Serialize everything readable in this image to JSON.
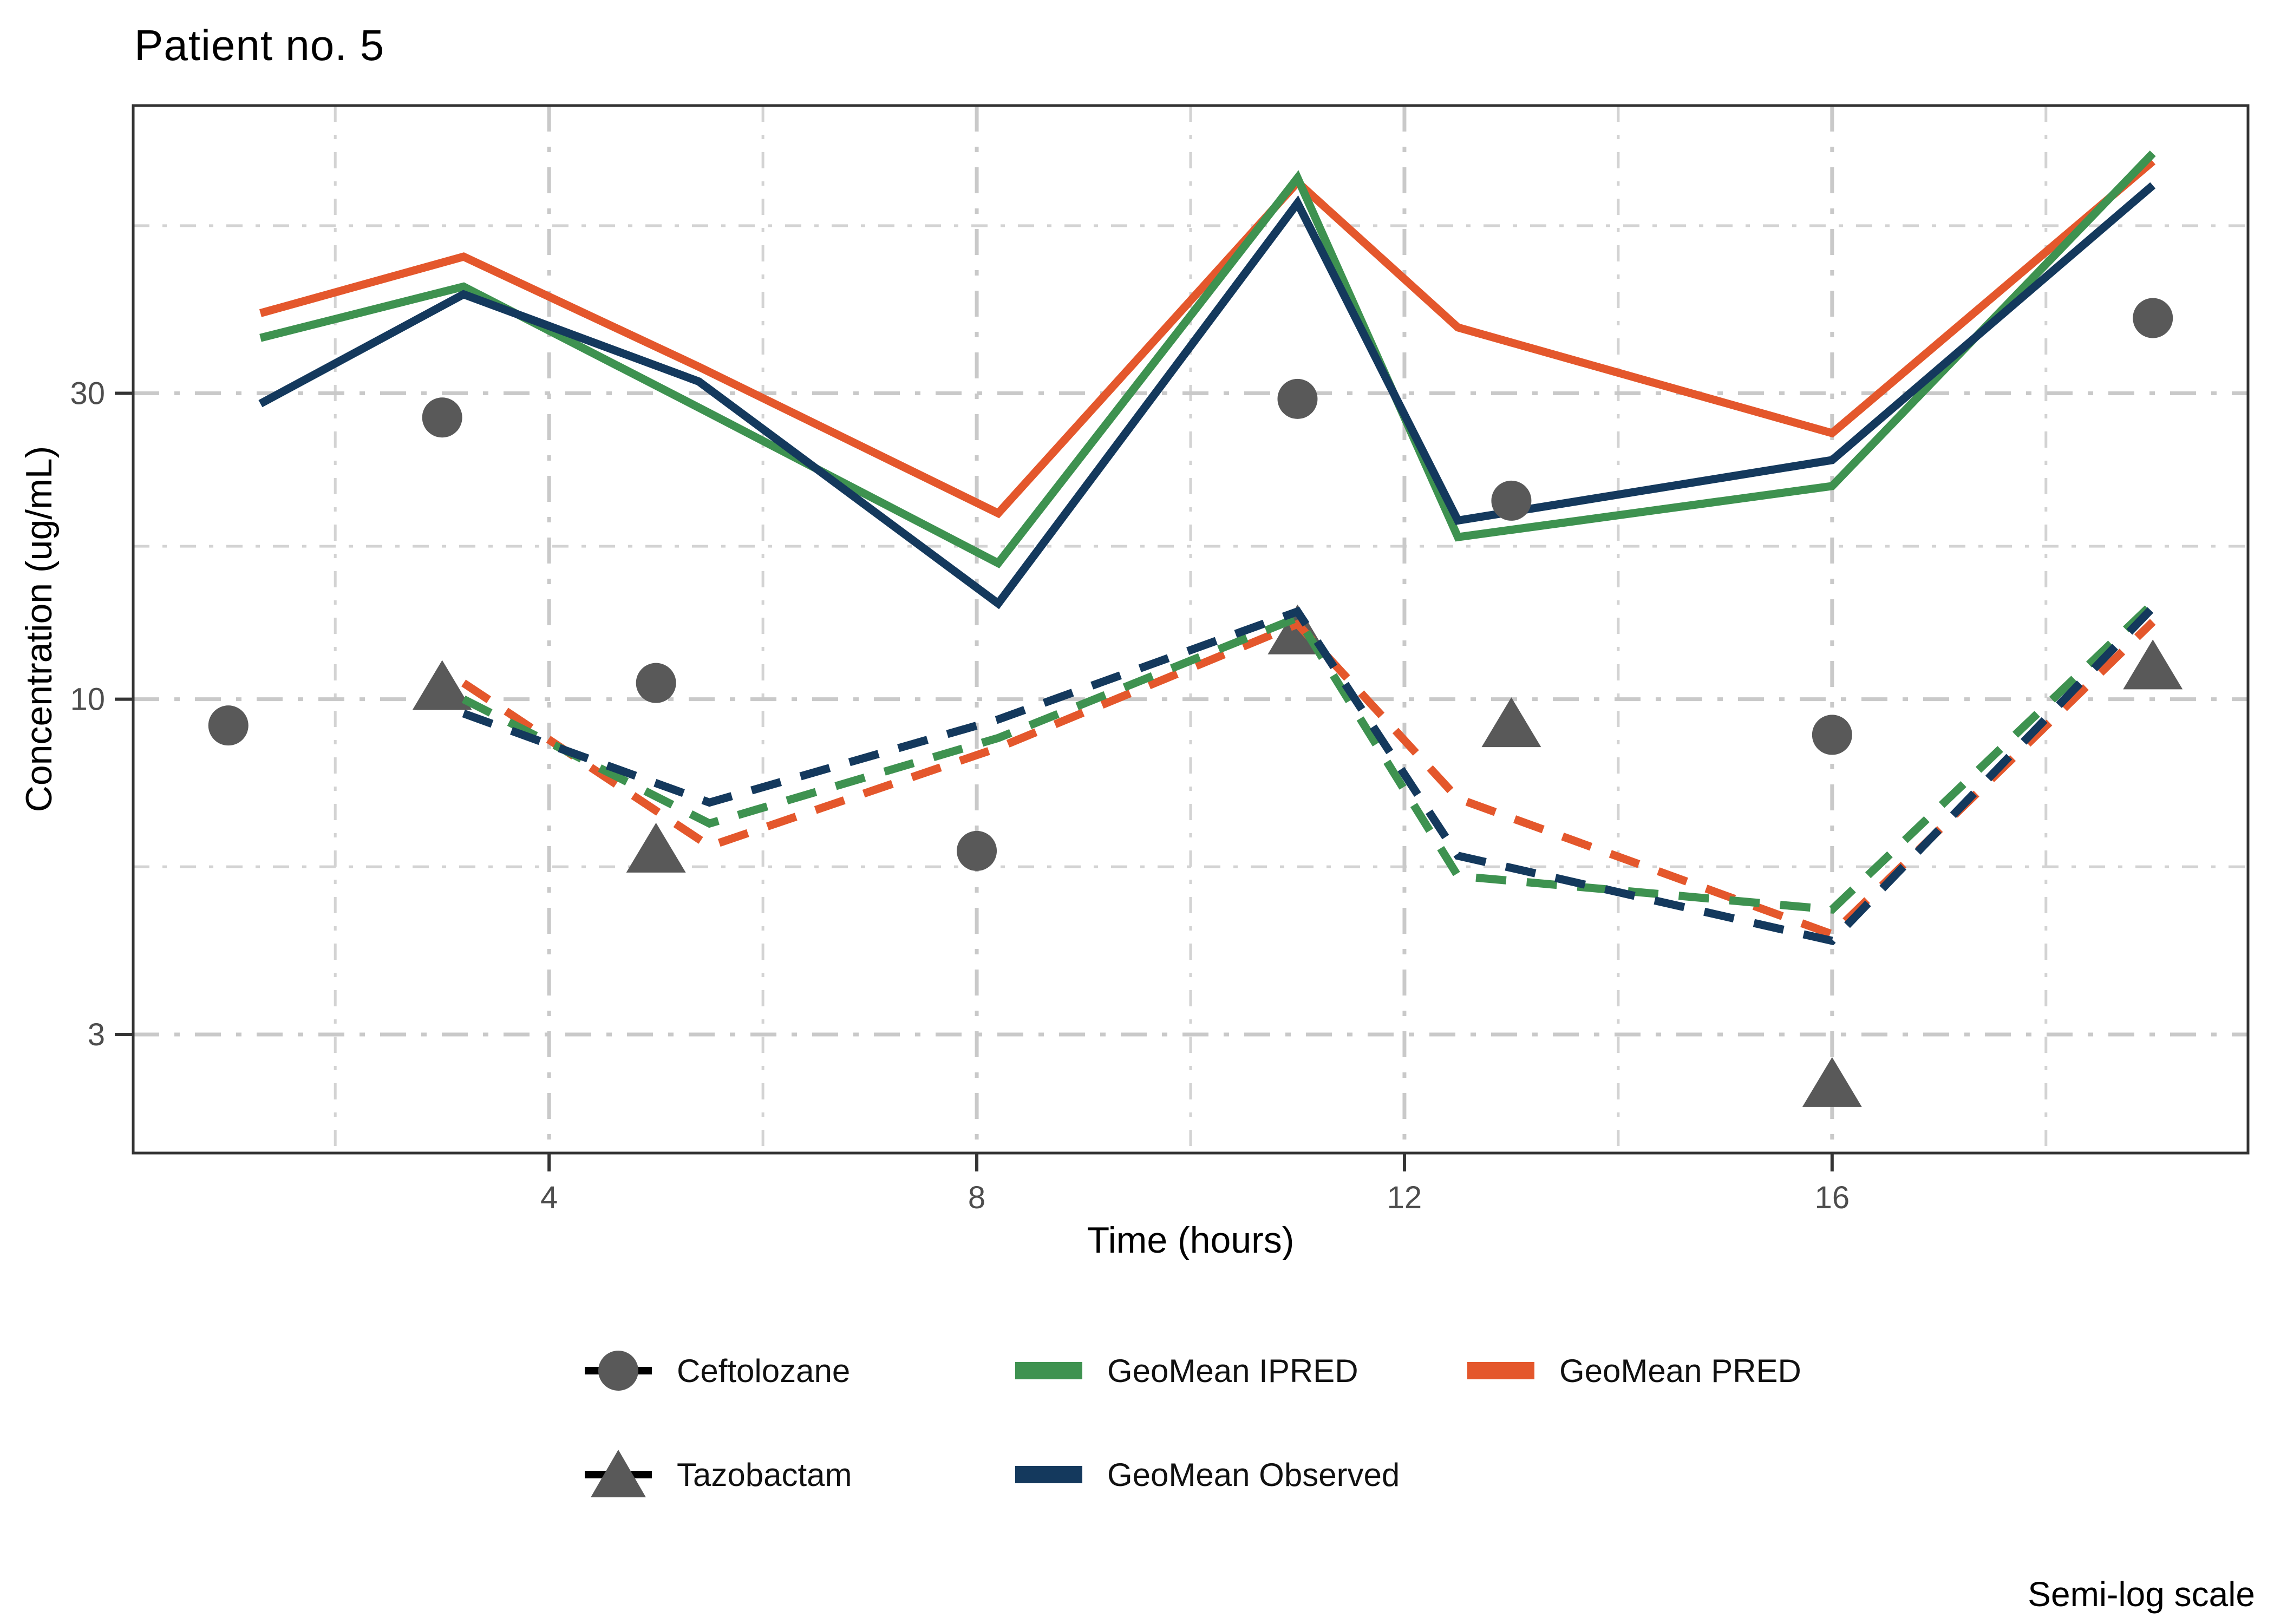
{
  "title": "Patient no. 5",
  "caption": "Semi-log scale",
  "legend": {
    "items": {
      "ceftolozane": "Ceftolozane",
      "tazobactam": "Tazobactam",
      "ipred": "GeoMean IPRED",
      "pred": "GeoMean PRED",
      "observed": "GeoMean Observed"
    }
  },
  "colors": {
    "pred": "#E4572C",
    "ipred": "#3E9250",
    "observed": "#14395D",
    "point": "#595959",
    "grid_major": "#C9C9C9",
    "grid_minor": "#D3D3D3",
    "border": "#333333",
    "tick_label": "#4D4D4D",
    "title_text": "#000000"
  },
  "chart_data": {
    "type": "line",
    "title": "Patient no. 5",
    "xlabel": "Time (hours)",
    "ylabel": "Concentration (ug/mL)",
    "x_scale": "linear",
    "y_scale": "log10",
    "xlim": [
      0.11,
      19.89
    ],
    "ylim": [
      1.96,
      84.3
    ],
    "x_ticks": [
      4,
      8,
      12,
      16
    ],
    "x_minor_gridlines": [
      2,
      6,
      10,
      14,
      18
    ],
    "y_ticks": [
      30,
      10,
      3
    ],
    "y_minor_gridlines": [
      5.48,
      17.32,
      54.77
    ],
    "grid": true,
    "legend_position": "bottom",
    "series": [
      {
        "name": "GeoMean PRED",
        "drug": "Ceftolozane",
        "color_key": "pred",
        "line_style": "solid",
        "x": [
          1.3,
          3.2,
          5.4,
          8.2,
          11,
          12.5,
          16,
          19
        ],
        "y": [
          40,
          49,
          33,
          19.5,
          64,
          38,
          26,
          69
        ]
      },
      {
        "name": "GeoMean IPRED",
        "drug": "Ceftolozane",
        "color_key": "ipred",
        "line_style": "solid",
        "x": [
          1.3,
          3.2,
          5.4,
          8.2,
          11,
          12.5,
          16,
          19
        ],
        "y": [
          36.6,
          44,
          28.5,
          16.3,
          65,
          17.9,
          21.5,
          71
        ]
      },
      {
        "name": "GeoMean Observed",
        "drug": "Ceftolozane",
        "color_key": "observed",
        "line_style": "solid",
        "x": [
          1.3,
          3.2,
          5.4,
          8.2,
          11,
          12.5,
          16,
          19
        ],
        "y": [
          28.9,
          42.8,
          31.3,
          14.1,
          59.4,
          19,
          23.6,
          63.3
        ]
      },
      {
        "name": "GeoMean PRED",
        "drug": "Tazobactam",
        "color_key": "pred",
        "line_style": "dashed",
        "x": [
          3.2,
          5.5,
          8.2,
          11,
          12.5,
          16,
          19
        ],
        "y": [
          10.6,
          5.9,
          8.4,
          13.1,
          7,
          4.3,
          13.2
        ]
      },
      {
        "name": "GeoMean IPRED",
        "drug": "Tazobactam",
        "color_key": "ipred",
        "line_style": "dashed",
        "x": [
          3.2,
          5.5,
          8.2,
          11,
          12.5,
          16,
          19
        ],
        "y": [
          10,
          6.4,
          8.7,
          13.4,
          5.3,
          4.7,
          14.1
        ]
      },
      {
        "name": "GeoMean Observed",
        "drug": "Tazobactam",
        "color_key": "observed",
        "line_style": "dashed",
        "x": [
          3.2,
          5.5,
          8.2,
          11,
          12.5,
          16,
          19
        ],
        "y": [
          9.5,
          6.9,
          9.3,
          13.7,
          5.7,
          4.2,
          13.9
        ]
      }
    ],
    "points": [
      {
        "name": "Ceftolozane",
        "marker": "circle",
        "x": [
          1,
          3,
          5,
          8,
          11,
          13,
          16,
          19
        ],
        "y": [
          9.1,
          27.5,
          10.6,
          5.8,
          29.4,
          20.4,
          8.8,
          39.3
        ]
      },
      {
        "name": "Tazobactam",
        "marker": "triangle",
        "x": [
          3,
          5,
          11,
          13,
          16,
          19
        ],
        "y": [
          10.4,
          5.8,
          12.7,
          9.1,
          2.5,
          11.2
        ]
      }
    ]
  }
}
